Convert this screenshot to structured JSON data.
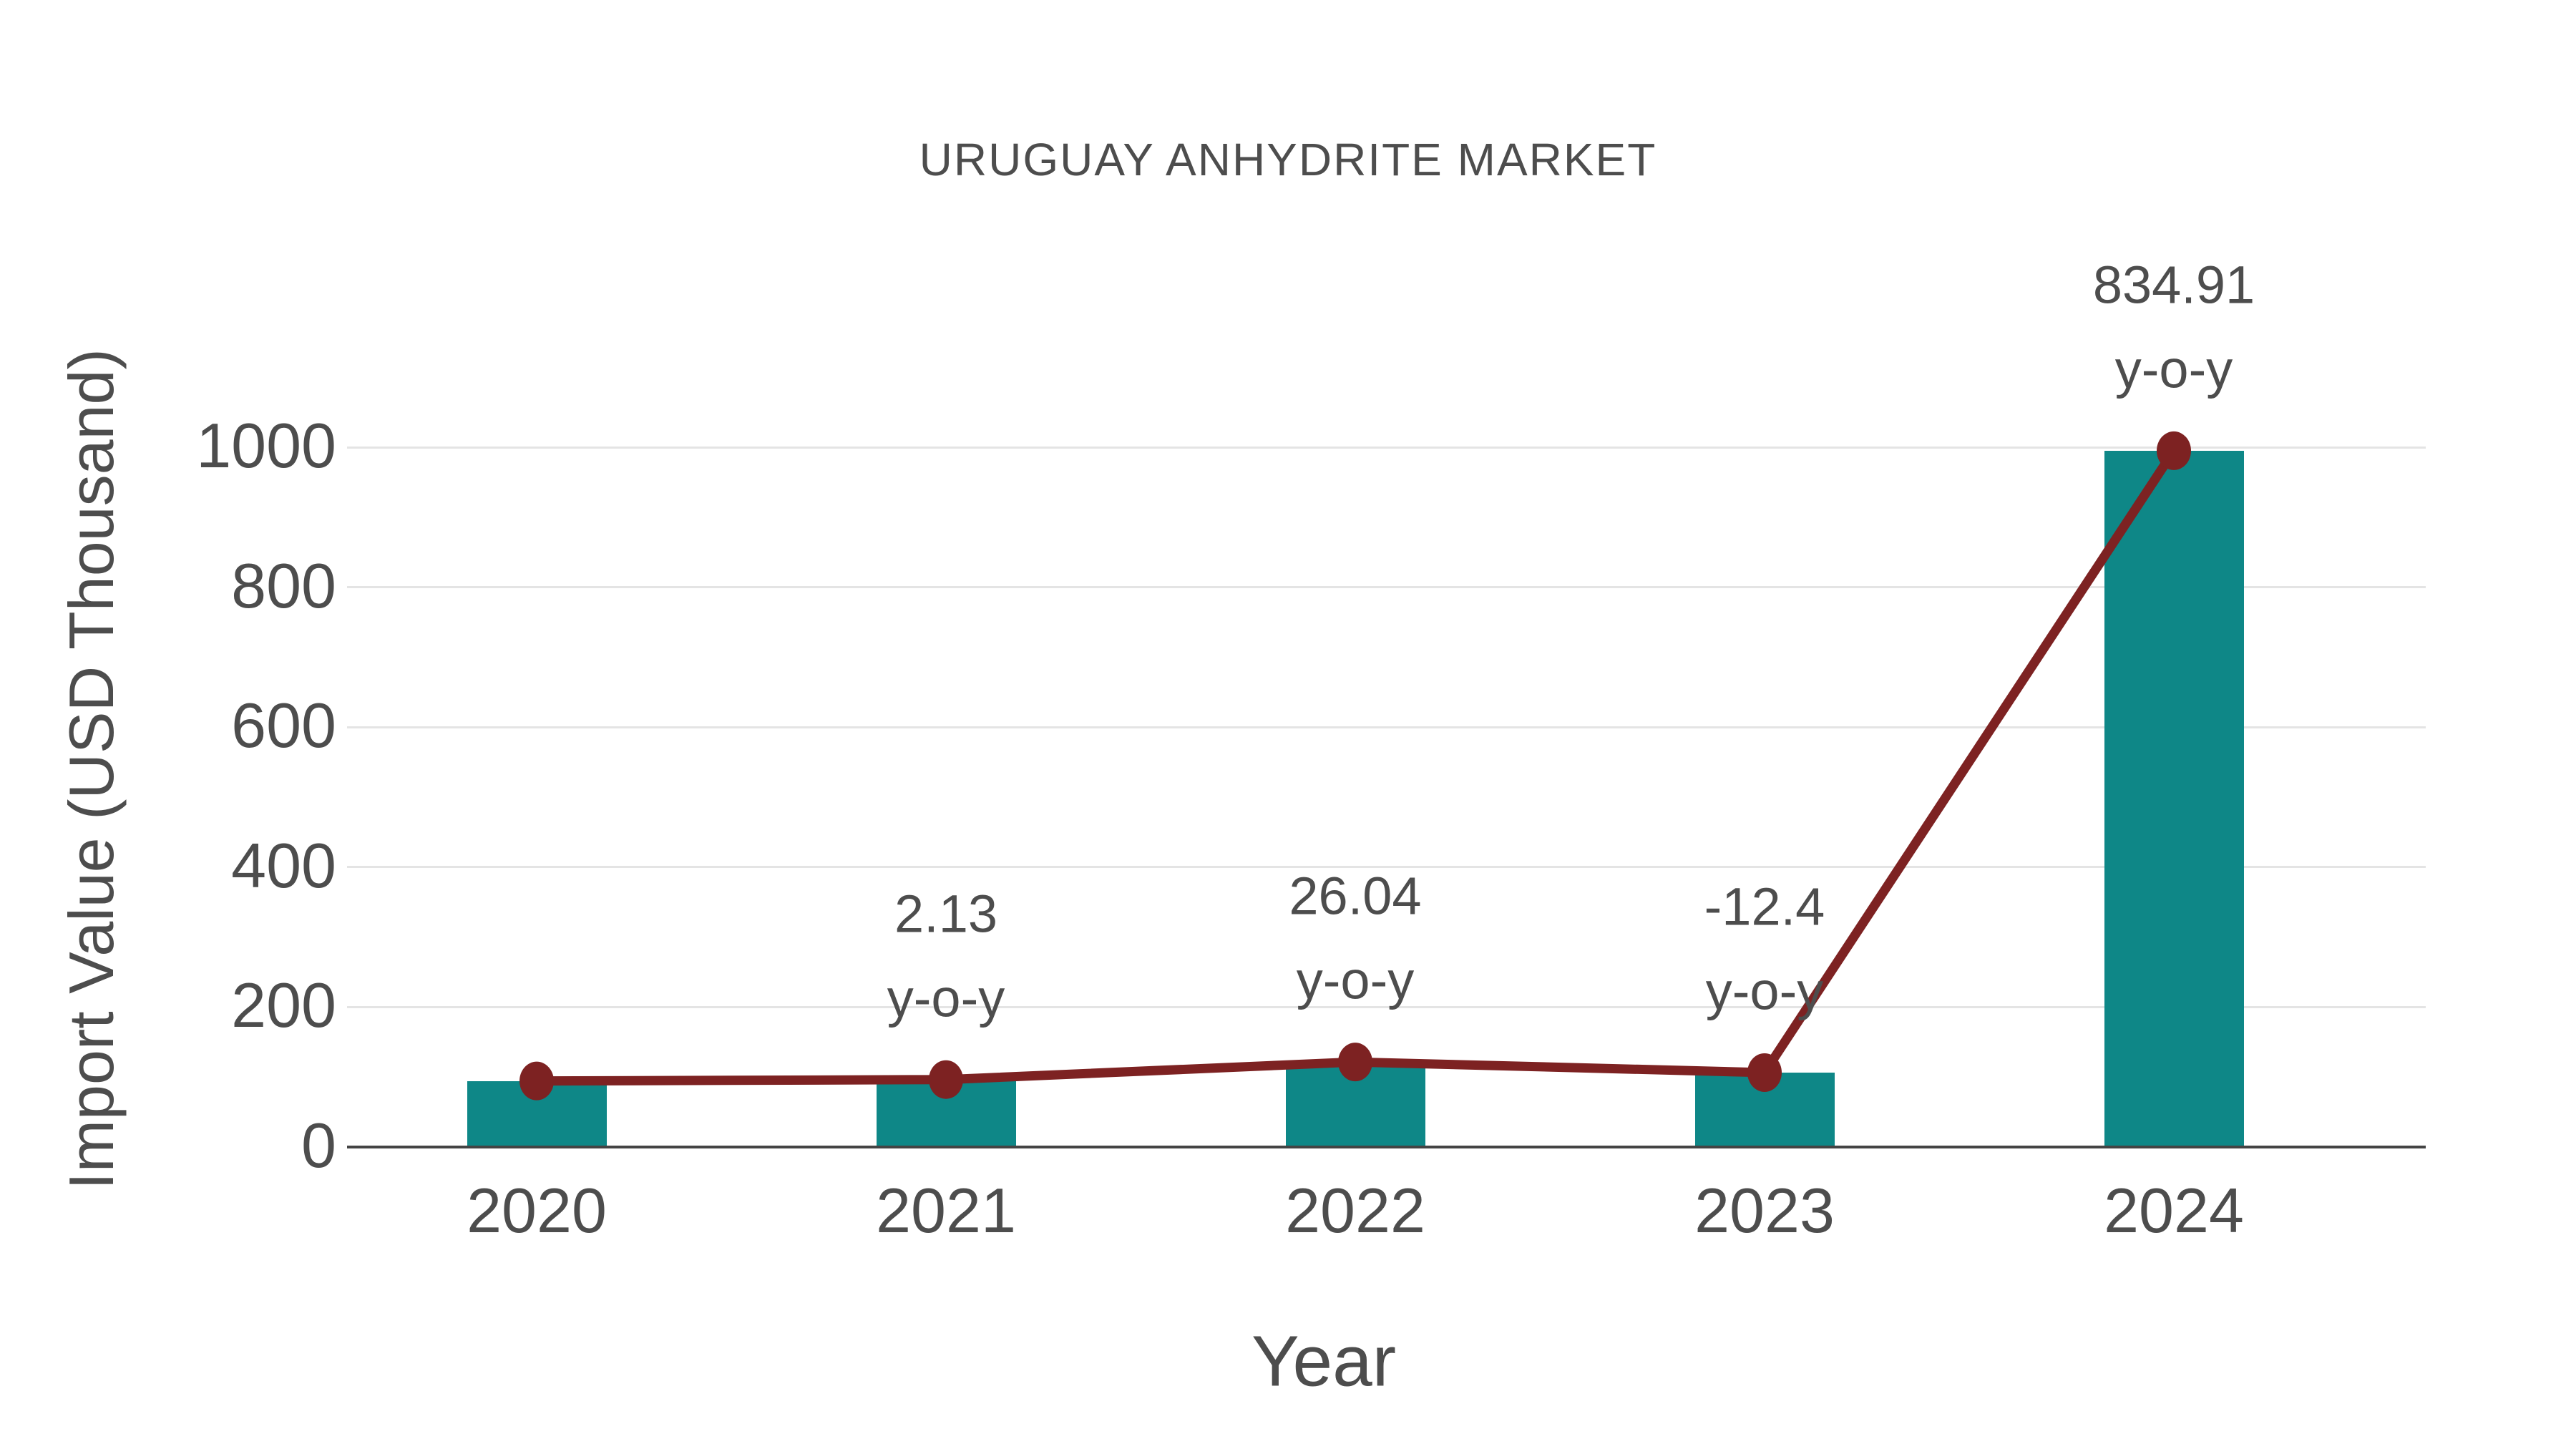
{
  "title": "URUGUAY ANHYDRITE MARKET",
  "chart_data": {
    "type": "bar",
    "subtype": "bar-with-line-markers",
    "title": "URUGUAY ANHYDRITE MARKET",
    "xlabel": "Year",
    "ylabel": "Import Value (USD Thousand)",
    "categories": [
      "2020",
      "2021",
      "2022",
      "2023",
      "2024"
    ],
    "series": [
      {
        "name": "Import Value (bar)",
        "type": "bar",
        "values": [
          94.4,
          96.4,
          121.5,
          106.4,
          995.0
        ]
      },
      {
        "name": "Import Value (line markers)",
        "type": "line",
        "values": [
          94.4,
          96.4,
          121.5,
          106.4,
          995.0
        ]
      }
    ],
    "yoy_percent": [
      null,
      2.13,
      26.04,
      -12.4,
      834.91
    ],
    "annotations": [
      {
        "category": "2021",
        "line1": "2.13",
        "line2": "y-o-y"
      },
      {
        "category": "2022",
        "line1": "26.04",
        "line2": "y-o-y"
      },
      {
        "category": "2023",
        "line1": "-12.4",
        "line2": "y-o-y"
      },
      {
        "category": "2024",
        "line1": "834.91",
        "line2": "y-o-y"
      }
    ],
    "yticks": [
      0,
      200,
      400,
      600,
      800,
      1000
    ],
    "ytick_labels": [
      "0",
      "200",
      "400",
      "600",
      "800",
      "1000"
    ],
    "ylim": [
      0,
      1000
    ],
    "grid": true,
    "legend": "none",
    "colors": {
      "bar": "#0E8787",
      "line": "#7D2222",
      "marker": "#7D2222",
      "grid": "#E4E4E4",
      "axis_line": "#444444",
      "text": "#4D4D4D"
    }
  }
}
